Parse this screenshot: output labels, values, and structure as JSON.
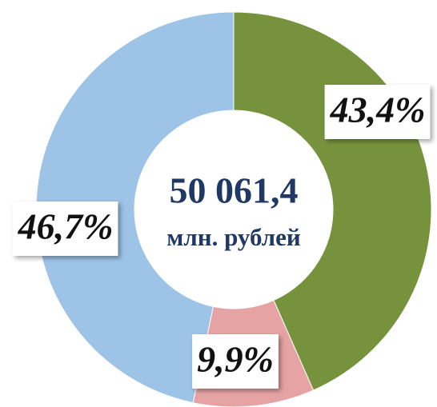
{
  "chart_data": {
    "type": "donut",
    "categories": [
      null,
      null,
      null
    ],
    "values": [
      43.4,
      9.9,
      46.7
    ],
    "value_labels": [
      "43,4%",
      "9,9%",
      "46,7%"
    ],
    "colors": [
      "#76923c",
      "#e6a3a3",
      "#9dc3e6"
    ],
    "annotations": [
      "50 061,4",
      "млн. рублей"
    ]
  }
}
